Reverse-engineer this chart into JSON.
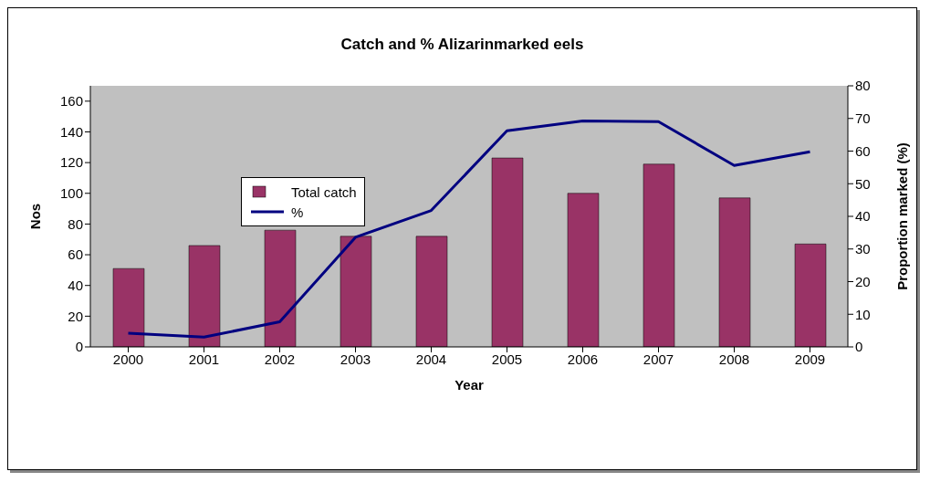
{
  "chart_data": {
    "type": "bar",
    "title": "Catch and % Alizarinmarked eels",
    "xlabel": "Year",
    "ylabel": "Nos",
    "y2label": "Proportion marked (%)",
    "categories": [
      "2000",
      "2001",
      "2002",
      "2003",
      "2004",
      "2005",
      "2006",
      "2007",
      "2008",
      "2009"
    ],
    "series": [
      {
        "name": "Total catch",
        "color": "#993366",
        "values": [
          51,
          66,
          76,
          72,
          72,
          123,
          100,
          119,
          97,
          67
        ]
      },
      {
        "name": "%",
        "type": "line",
        "axis": "y2",
        "color": "#000080",
        "values": [
          4.2,
          3,
          7.7,
          33.6,
          41.8,
          66.2,
          69.2,
          69,
          55.6,
          59.8
        ]
      }
    ],
    "ylim": [
      0,
      170
    ],
    "yticks": [
      0,
      20,
      40,
      60,
      80,
      100,
      120,
      140,
      160
    ],
    "y2lim": [
      0,
      80
    ],
    "y2ticks": [
      0,
      10,
      20,
      30,
      40,
      50,
      60,
      70,
      80
    ],
    "grid": false,
    "legend": "top left",
    "marker": "none",
    "line_style": "solid"
  }
}
